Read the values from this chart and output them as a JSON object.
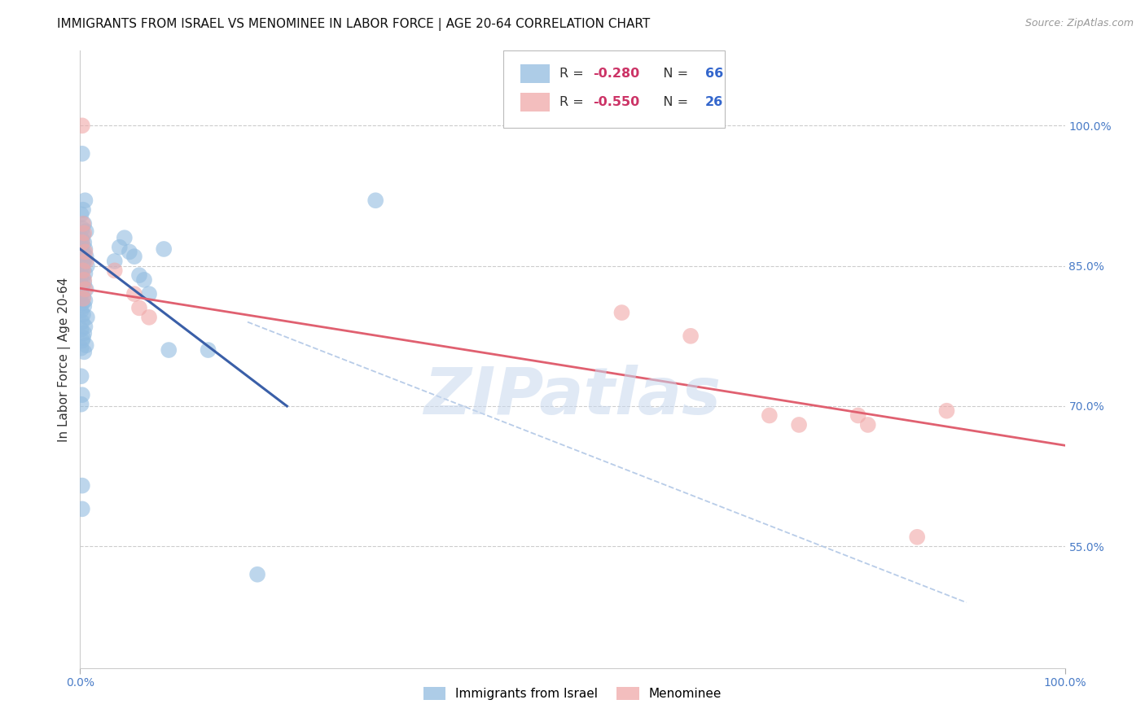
{
  "title": "IMMIGRANTS FROM ISRAEL VS MENOMINEE IN LABOR FORCE | AGE 20-64 CORRELATION CHART",
  "source": "Source: ZipAtlas.com",
  "ylabel": "In Labor Force | Age 20-64",
  "xlim": [
    0.0,
    1.0
  ],
  "ylim": [
    0.42,
    1.08
  ],
  "ytick_labels_right": [
    "100.0%",
    "85.0%",
    "70.0%",
    "55.0%"
  ],
  "ytick_positions_right": [
    1.0,
    0.85,
    0.7,
    0.55
  ],
  "blue_color": "#92bce0",
  "pink_color": "#f0a8a8",
  "blue_line_color": "#3a5fa8",
  "pink_line_color": "#e06070",
  "dashed_line_color": "#b8cce8",
  "watermark": "ZIPatlas",
  "blue_dots": [
    [
      0.002,
      0.97
    ],
    [
      0.005,
      0.92
    ],
    [
      0.003,
      0.91
    ],
    [
      0.001,
      0.905
    ],
    [
      0.004,
      0.895
    ],
    [
      0.002,
      0.89
    ],
    [
      0.006,
      0.887
    ],
    [
      0.003,
      0.883
    ],
    [
      0.001,
      0.88
    ],
    [
      0.002,
      0.877
    ],
    [
      0.004,
      0.875
    ],
    [
      0.001,
      0.872
    ],
    [
      0.005,
      0.868
    ],
    [
      0.003,
      0.865
    ],
    [
      0.002,
      0.862
    ],
    [
      0.006,
      0.86
    ],
    [
      0.001,
      0.857
    ],
    [
      0.004,
      0.855
    ],
    [
      0.003,
      0.852
    ],
    [
      0.007,
      0.85
    ],
    [
      0.002,
      0.845
    ],
    [
      0.005,
      0.842
    ],
    [
      0.001,
      0.84
    ],
    [
      0.003,
      0.837
    ],
    [
      0.004,
      0.832
    ],
    [
      0.002,
      0.828
    ],
    [
      0.006,
      0.825
    ],
    [
      0.001,
      0.82
    ],
    [
      0.003,
      0.817
    ],
    [
      0.005,
      0.813
    ],
    [
      0.002,
      0.81
    ],
    [
      0.004,
      0.807
    ],
    [
      0.001,
      0.802
    ],
    [
      0.003,
      0.798
    ],
    [
      0.007,
      0.795
    ],
    [
      0.002,
      0.79
    ],
    [
      0.005,
      0.785
    ],
    [
      0.001,
      0.782
    ],
    [
      0.004,
      0.778
    ],
    [
      0.003,
      0.773
    ],
    [
      0.002,
      0.77
    ],
    [
      0.006,
      0.765
    ],
    [
      0.001,
      0.762
    ],
    [
      0.004,
      0.758
    ],
    [
      0.001,
      0.732
    ],
    [
      0.002,
      0.712
    ],
    [
      0.001,
      0.702
    ],
    [
      0.04,
      0.87
    ],
    [
      0.045,
      0.88
    ],
    [
      0.05,
      0.865
    ],
    [
      0.055,
      0.86
    ],
    [
      0.035,
      0.855
    ],
    [
      0.06,
      0.84
    ],
    [
      0.065,
      0.835
    ],
    [
      0.07,
      0.82
    ],
    [
      0.085,
      0.868
    ],
    [
      0.09,
      0.76
    ],
    [
      0.13,
      0.76
    ],
    [
      0.002,
      0.615
    ],
    [
      0.002,
      0.59
    ],
    [
      0.18,
      0.52
    ],
    [
      0.3,
      0.92
    ]
  ],
  "pink_dots": [
    [
      0.002,
      1.0
    ],
    [
      0.003,
      0.895
    ],
    [
      0.004,
      0.885
    ],
    [
      0.002,
      0.875
    ],
    [
      0.005,
      0.865
    ],
    [
      0.006,
      0.855
    ],
    [
      0.003,
      0.845
    ],
    [
      0.004,
      0.835
    ],
    [
      0.005,
      0.825
    ],
    [
      0.003,
      0.815
    ],
    [
      0.035,
      0.845
    ],
    [
      0.055,
      0.82
    ],
    [
      0.06,
      0.805
    ],
    [
      0.07,
      0.795
    ],
    [
      0.55,
      0.8
    ],
    [
      0.62,
      0.775
    ],
    [
      0.7,
      0.69
    ],
    [
      0.73,
      0.68
    ],
    [
      0.79,
      0.69
    ],
    [
      0.8,
      0.68
    ],
    [
      0.85,
      0.56
    ],
    [
      0.88,
      0.695
    ]
  ],
  "blue_trendline_x": [
    0.0,
    0.21
  ],
  "blue_trendline_y": [
    0.868,
    0.7
  ],
  "pink_trendline_x": [
    0.0,
    1.0
  ],
  "pink_trendline_y": [
    0.826,
    0.658
  ],
  "dashed_trendline_x": [
    0.17,
    0.9
  ],
  "dashed_trendline_y": [
    0.79,
    0.49
  ]
}
